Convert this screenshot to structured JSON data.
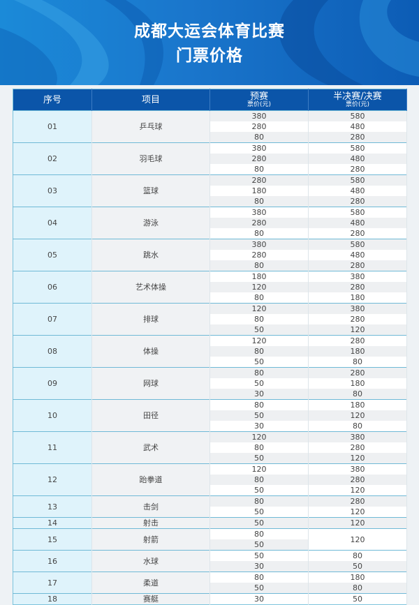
{
  "title": {
    "line1": "成都大运会体育比赛",
    "line2": "门票价格"
  },
  "colors": {
    "banner": "#1a76cc",
    "header": "#0b55a9",
    "index_column": "#dff3fb",
    "border": "#7cc3dc"
  },
  "table": {
    "headers": {
      "no": "序号",
      "event": "项目",
      "prelim": "预赛",
      "prelim_unit": "票价(元)",
      "final": "半决赛/决赛",
      "final_unit": "票价(元)"
    },
    "rows": [
      {
        "no": "01",
        "event": "乒乓球",
        "prelim": [
          "380",
          "280",
          "80"
        ],
        "final": [
          "580",
          "480",
          "280"
        ]
      },
      {
        "no": "02",
        "event": "羽毛球",
        "prelim": [
          "380",
          "280",
          "80"
        ],
        "final": [
          "580",
          "480",
          "280"
        ]
      },
      {
        "no": "03",
        "event": "篮球",
        "prelim": [
          "280",
          "180",
          "80"
        ],
        "final": [
          "580",
          "480",
          "280"
        ]
      },
      {
        "no": "04",
        "event": "游泳",
        "prelim": [
          "380",
          "280",
          "80"
        ],
        "final": [
          "580",
          "480",
          "280"
        ]
      },
      {
        "no": "05",
        "event": "跳水",
        "prelim": [
          "380",
          "280",
          "80"
        ],
        "final": [
          "580",
          "480",
          "280"
        ]
      },
      {
        "no": "06",
        "event": "艺术体操",
        "prelim": [
          "180",
          "120",
          "80"
        ],
        "final": [
          "380",
          "280",
          "180"
        ]
      },
      {
        "no": "07",
        "event": "排球",
        "prelim": [
          "120",
          "80",
          "50"
        ],
        "final": [
          "380",
          "280",
          "120"
        ]
      },
      {
        "no": "08",
        "event": "体操",
        "prelim": [
          "120",
          "80",
          "50"
        ],
        "final": [
          "280",
          "180",
          "80"
        ]
      },
      {
        "no": "09",
        "event": "网球",
        "prelim": [
          "80",
          "50",
          "30"
        ],
        "final": [
          "280",
          "180",
          "80"
        ]
      },
      {
        "no": "10",
        "event": "田径",
        "prelim": [
          "80",
          "50",
          "30"
        ],
        "final": [
          "180",
          "120",
          "80"
        ]
      },
      {
        "no": "11",
        "event": "武术",
        "prelim": [
          "120",
          "80",
          "50"
        ],
        "final": [
          "380",
          "280",
          "120"
        ]
      },
      {
        "no": "12",
        "event": "跆拳道",
        "prelim": [
          "120",
          "80",
          "50"
        ],
        "final": [
          "380",
          "280",
          "120"
        ]
      },
      {
        "no": "13",
        "event": "击剑",
        "prelim": [
          "80",
          "50"
        ],
        "final": [
          "280",
          "120"
        ]
      },
      {
        "no": "14",
        "event": "射击",
        "prelim": [
          "50"
        ],
        "final": [
          "120"
        ]
      },
      {
        "no": "15",
        "event": "射箭",
        "prelim": [
          "80",
          "50"
        ],
        "final": [
          "120"
        ]
      },
      {
        "no": "16",
        "event": "水球",
        "prelim": [
          "50",
          "30"
        ],
        "final": [
          "80",
          "50"
        ]
      },
      {
        "no": "17",
        "event": "柔道",
        "prelim": [
          "80",
          "50"
        ],
        "final": [
          "180",
          "80"
        ]
      },
      {
        "no": "18",
        "event": "赛艇",
        "prelim": [
          "30"
        ],
        "final": [
          "50"
        ]
      }
    ]
  }
}
